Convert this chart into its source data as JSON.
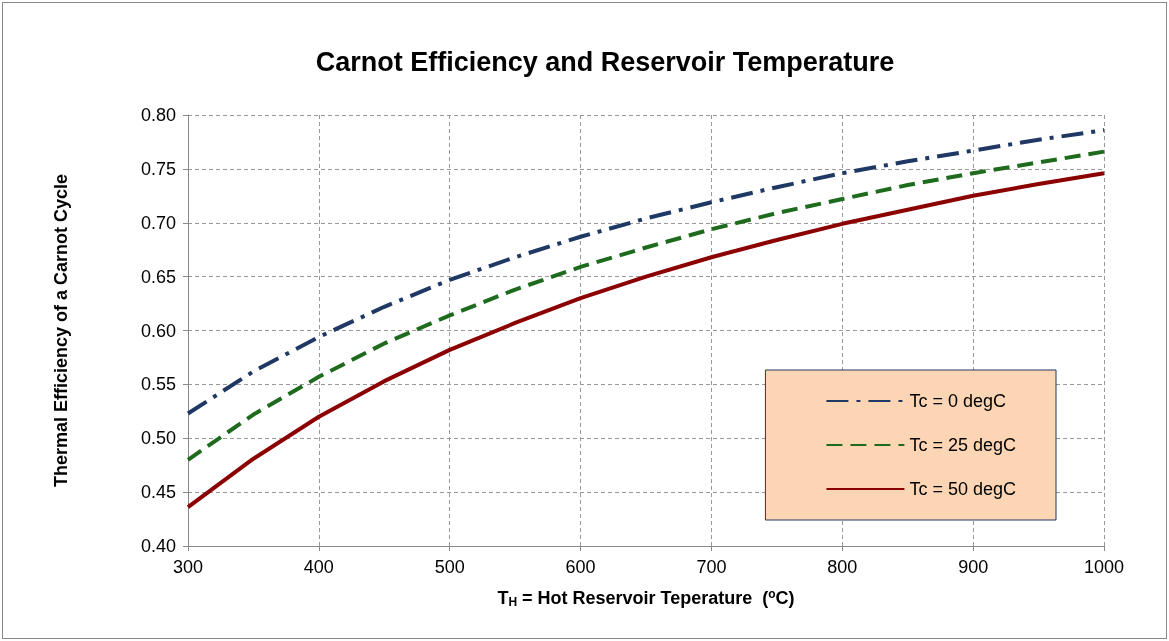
{
  "chart_data": {
    "type": "line",
    "title": "Carnot Efficiency and Reservoir Temperature",
    "xlabel": "T$_{H}$ = Hot Reservoir Teperature  ($^{o}$C)",
    "ylabel": "Thermal Efficiency of a Carnot Cycle",
    "x": [
      300,
      350,
      400,
      450,
      500,
      550,
      600,
      650,
      700,
      750,
      800,
      850,
      900,
      950,
      1000
    ],
    "series": [
      {
        "name": "Tc = 0 degC",
        "color": "#1f3864",
        "line_style": "dashdot",
        "values": [
          0.523,
          0.562,
          0.594,
          0.622,
          0.647,
          0.668,
          0.687,
          0.704,
          0.719,
          0.733,
          0.746,
          0.757,
          0.767,
          0.777,
          0.786
        ]
      },
      {
        "name": "Tc = 25 degC",
        "color": "#1e6b1e",
        "line_style": "dashed",
        "values": [
          0.48,
          0.522,
          0.557,
          0.588,
          0.614,
          0.638,
          0.659,
          0.677,
          0.694,
          0.709,
          0.722,
          0.735,
          0.746,
          0.756,
          0.766
        ]
      },
      {
        "name": "Tc = 50 degC",
        "color": "#8b0000",
        "line_style": "solid",
        "values": [
          0.436,
          0.481,
          0.52,
          0.553,
          0.582,
          0.607,
          0.63,
          0.65,
          0.668,
          0.684,
          0.699,
          0.712,
          0.725,
          0.736,
          0.746
        ]
      }
    ],
    "xlim": [
      300,
      1000
    ],
    "xticks": [
      300,
      400,
      500,
      600,
      700,
      800,
      900,
      1000
    ],
    "ylim": [
      0.4,
      0.8
    ],
    "yticks": [
      {
        "value": 0.4,
        "label": "0.40"
      },
      {
        "value": 0.45,
        "label": "0.45"
      },
      {
        "value": 0.5,
        "label": "0.50"
      },
      {
        "value": 0.55,
        "label": "0.55"
      },
      {
        "value": 0.6,
        "label": "0.60"
      },
      {
        "value": 0.65,
        "label": "0.65"
      },
      {
        "value": 0.7,
        "label": "0.70"
      },
      {
        "value": 0.75,
        "label": "0.75"
      },
      {
        "value": 0.8,
        "label": "0.80"
      }
    ],
    "grid": true,
    "legend": "bottom right",
    "marker": "none"
  }
}
